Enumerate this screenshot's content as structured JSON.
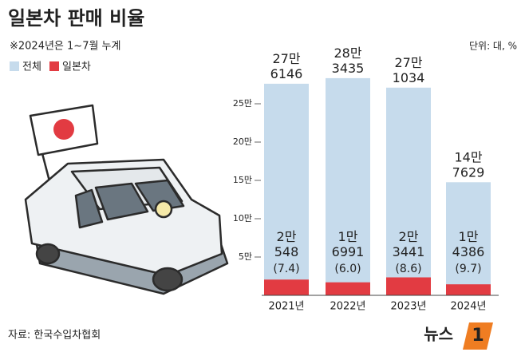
{
  "chart_data": {
    "type": "bar",
    "title": "일본차 판매 비율",
    "note": "※2024년은 1~7월 누계",
    "unit": "단위: 대, %",
    "source": "자료: 한국수입차협회",
    "logo": "뉴스",
    "logo_badge": "1",
    "categories": [
      "2021년",
      "2022년",
      "2023년",
      "2024년"
    ],
    "series": [
      {
        "name": "전체",
        "color": "#c6dbec",
        "values": [
          276146,
          283435,
          271034,
          147629
        ],
        "value_labels": [
          [
            "27만",
            "6146"
          ],
          [
            "28만",
            "3435"
          ],
          [
            "27만",
            "1034"
          ],
          [
            "14만",
            "7629"
          ]
        ]
      },
      {
        "name": "일본차",
        "color": "#e23b42",
        "values": [
          20548,
          16991,
          23441,
          14386
        ],
        "value_labels": [
          [
            "2만",
            "548"
          ],
          [
            "1만",
            "6991"
          ],
          [
            "2만",
            "3441"
          ],
          [
            "1만",
            "4386"
          ]
        ],
        "shares": [
          7.4,
          6.0,
          8.6,
          9.7
        ],
        "share_labels": [
          "(7.4)",
          "(6.0)",
          "(8.6)",
          "(9.7)"
        ]
      }
    ],
    "ylim": [
      0,
      300000
    ],
    "yticks": [
      {
        "value": 50000,
        "label": "5만"
      },
      {
        "value": 100000,
        "label": "10만"
      },
      {
        "value": 150000,
        "label": "15만"
      },
      {
        "value": 200000,
        "label": "20만"
      },
      {
        "value": 250000,
        "label": "25만"
      }
    ]
  }
}
